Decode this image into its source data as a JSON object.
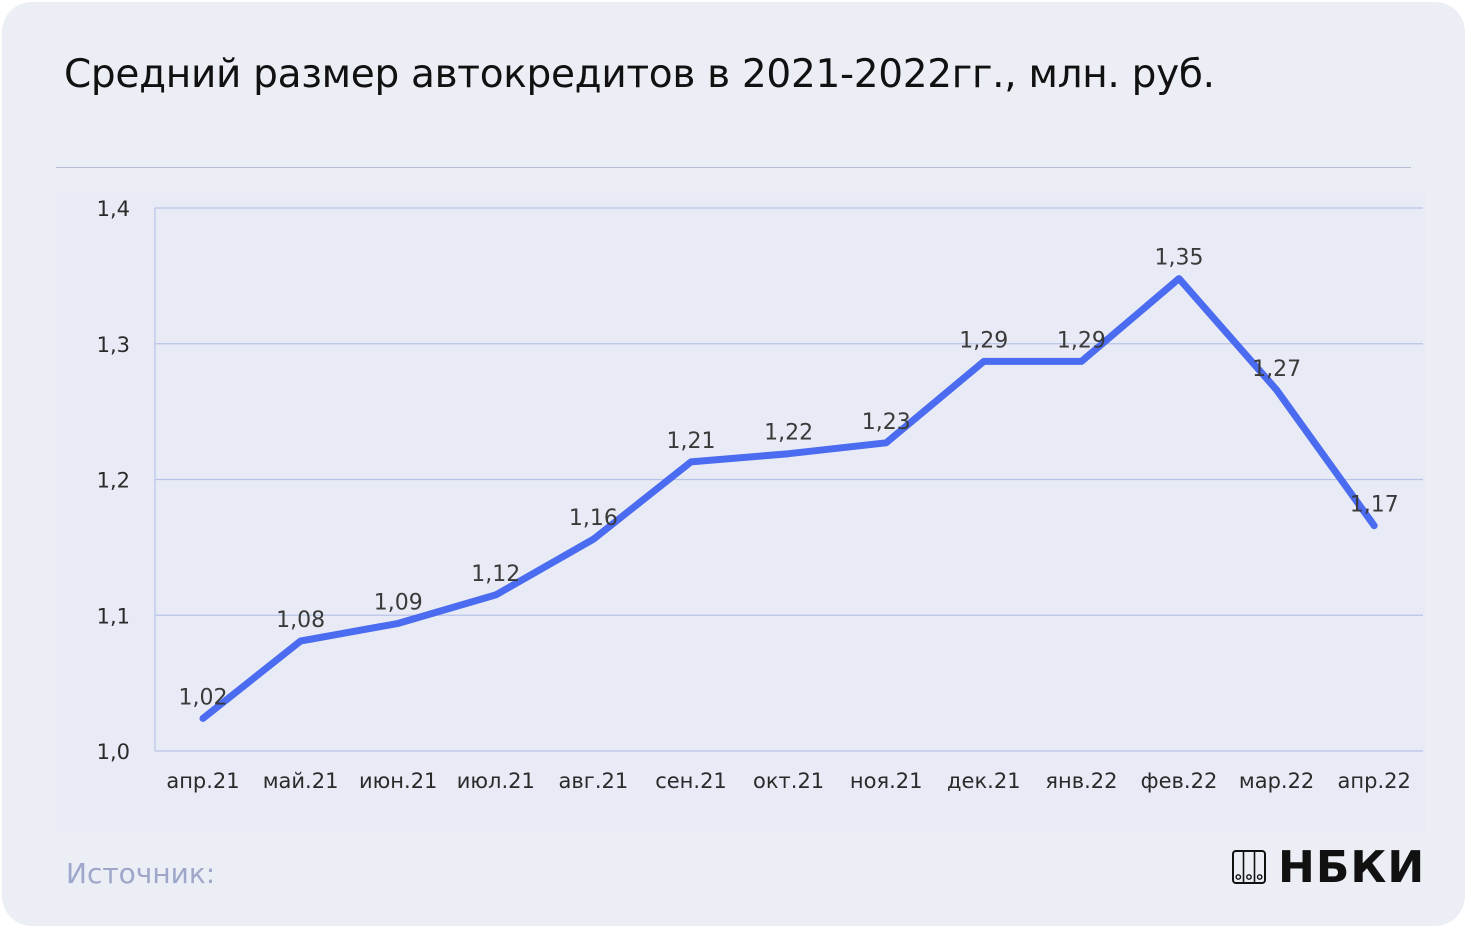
{
  "title": "Средний размер автокредитов в 2021-2022гг., млн. руб.",
  "source_label": "Источник:",
  "logo_text": "НБКИ",
  "logo_icon": "nbki-columns-icon",
  "colors": {
    "line": "#4b6cf0",
    "grid": "#b9c3e6",
    "background": "#eceef6"
  },
  "chart_data": {
    "type": "line",
    "title": "Средний размер автокредитов в 2021-2022гг., млн. руб.",
    "categories": [
      "апр.21",
      "май.21",
      "июн.21",
      "июл.21",
      "авг.21",
      "сен.21",
      "окт.21",
      "ноя.21",
      "дек.21",
      "янв.22",
      "фев.22",
      "мар.22",
      "апр.22"
    ],
    "series": [
      {
        "values": [
          1.024,
          1.081,
          1.094,
          1.115,
          1.156,
          1.213,
          1.219,
          1.227,
          1.287,
          1.287,
          1.348,
          1.266,
          1.166
        ],
        "labels": [
          "1,02",
          "1,08",
          "1,09",
          "1,12",
          "1,16",
          "1,21",
          "1,22",
          "1,23",
          "1,29",
          "1,29",
          "1,35",
          "1,27",
          "1,17"
        ]
      }
    ],
    "yticks": [
      1.0,
      1.1,
      1.2,
      1.3,
      1.4
    ],
    "ytick_labels": [
      "1,0",
      "1,1",
      "1,2",
      "1,3",
      "1,4"
    ],
    "ylim": [
      1.0,
      1.4
    ],
    "xlabel": "",
    "ylabel": "",
    "grid": true,
    "legend": "none"
  }
}
